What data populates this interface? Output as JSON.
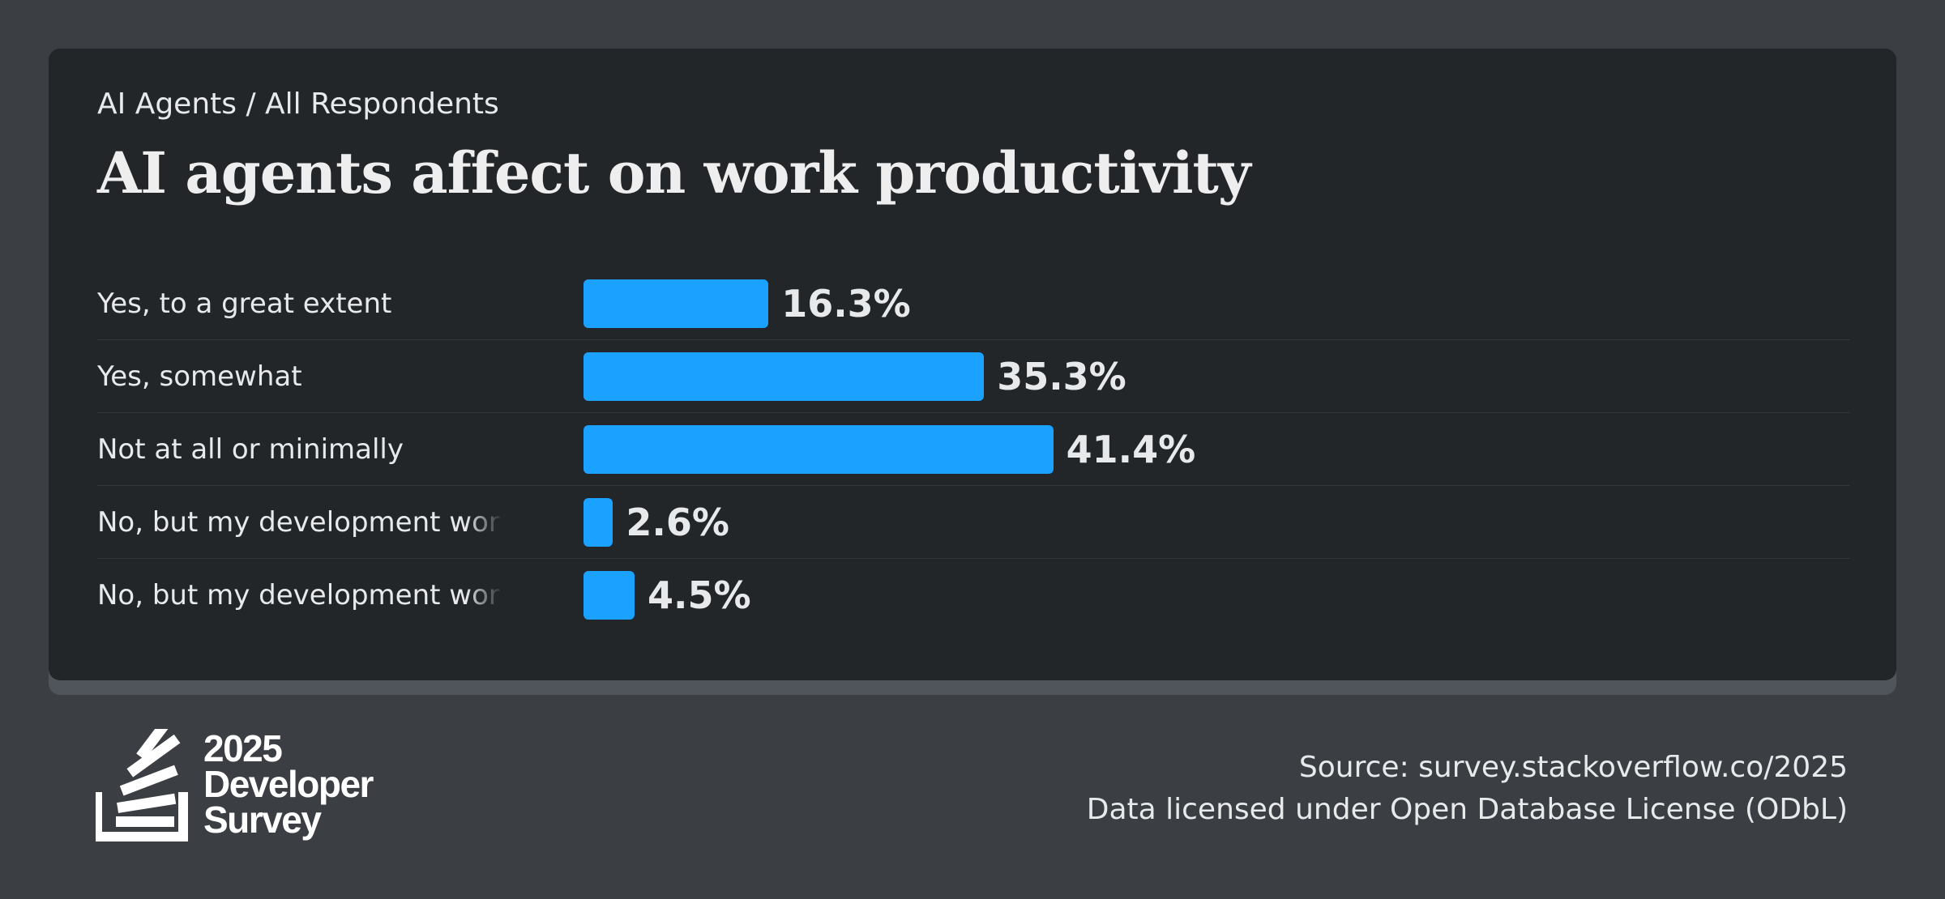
{
  "breadcrumb": "AI Agents / All Respondents",
  "title": "AI agents affect on work productivity",
  "chart_data": {
    "type": "bar",
    "orientation": "horizontal",
    "title": "AI agents affect on work productivity",
    "categories": [
      "Yes, to a great extent",
      "Yes, somewhat",
      "Not at all or minimally",
      "No, but my development work",
      "No, but my development work"
    ],
    "values": [
      16.3,
      35.3,
      41.4,
      2.6,
      4.5
    ],
    "value_labels": [
      "16.3%",
      "35.3%",
      "41.4%",
      "2.6%",
      "4.5%"
    ],
    "unit": "%",
    "xlim": [
      0,
      100
    ],
    "bar_color": "#1ba1ff",
    "grid": false,
    "xlabel": "",
    "ylabel": ""
  },
  "logo": {
    "year": "2025",
    "line1": "Developer",
    "line2": "Survey"
  },
  "footer": {
    "source": "Source: survey.stackoverflow.co/2025",
    "license": "Data licensed under Open Database License (ODbL)"
  }
}
